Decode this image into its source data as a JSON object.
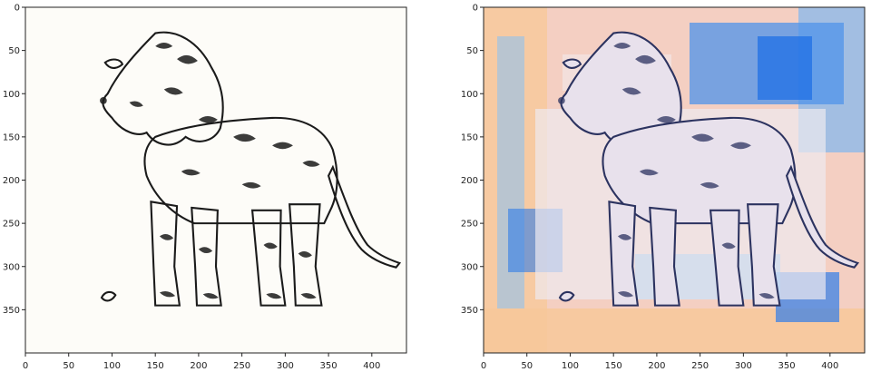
{
  "panels": [
    {
      "name": "original-image",
      "description_kind": "line-art lion (calligraphy) on white background",
      "x_ticks": [
        "0",
        "50",
        "100",
        "150",
        "200",
        "250",
        "300",
        "350",
        "400"
      ],
      "y_ticks": [
        "0",
        "50",
        "100",
        "150",
        "200",
        "250",
        "300",
        "350"
      ]
    },
    {
      "name": "stylized-image",
      "description_kind": "lion with colorful pastel / blue deep-dream texture",
      "x_ticks": [
        "0",
        "50",
        "100",
        "150",
        "200",
        "250",
        "300",
        "350",
        "400"
      ],
      "y_ticks": [
        "0",
        "50",
        "100",
        "150",
        "200",
        "250",
        "300",
        "350"
      ]
    }
  ],
  "colors": {
    "ink": "#1b1b1b",
    "paper": "#fdfcf8",
    "pastel_orange": "#f7c89a",
    "pastel_pink": "#f2c7cf",
    "pastel_blue": "#7fb6ef",
    "deep_blue": "#1f6fe6",
    "lilac": "#cdbfe6"
  }
}
